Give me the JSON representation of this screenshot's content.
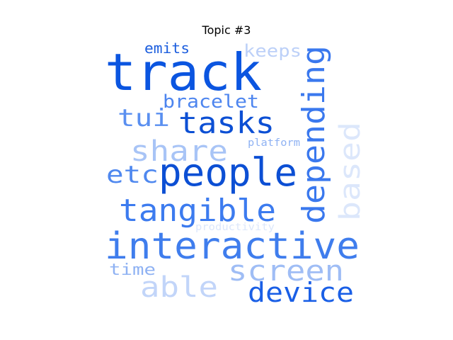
{
  "title": "Topic #3",
  "colors": {
    "dark": "#0b4fd8",
    "mid": "#3a78ee",
    "light": "#9fbdf5",
    "pale": "#dce7fb"
  },
  "words": [
    {
      "text": "track",
      "color": "#0b55e0"
    },
    {
      "text": "interactive",
      "color": "#3f7ded"
    },
    {
      "text": "people",
      "color": "#0c4fd4"
    },
    {
      "text": "depending",
      "color": "#3a78ee"
    },
    {
      "text": "tangible",
      "color": "#3c7bef"
    },
    {
      "text": "tasks",
      "color": "#0c4fd4"
    },
    {
      "text": "screen",
      "color": "#9fbdf5"
    },
    {
      "text": "device",
      "color": "#1a5fe6"
    },
    {
      "text": "share",
      "color": "#a8c4f6"
    },
    {
      "text": "based",
      "color": "#dce7fb"
    },
    {
      "text": "able",
      "color": "#c2d5f9"
    },
    {
      "text": "etc",
      "color": "#4f88ef"
    },
    {
      "text": "tui",
      "color": "#5a8ff0"
    },
    {
      "text": "bracelet",
      "color": "#4d85ef"
    },
    {
      "text": "keeps",
      "color": "#bcd0f8"
    },
    {
      "text": "emits",
      "color": "#1c5ede"
    },
    {
      "text": "time",
      "color": "#8fb2f3"
    },
    {
      "text": "platform",
      "color": "#8fb2f3"
    },
    {
      "text": "productivity",
      "color": "#dce7fb"
    }
  ]
}
